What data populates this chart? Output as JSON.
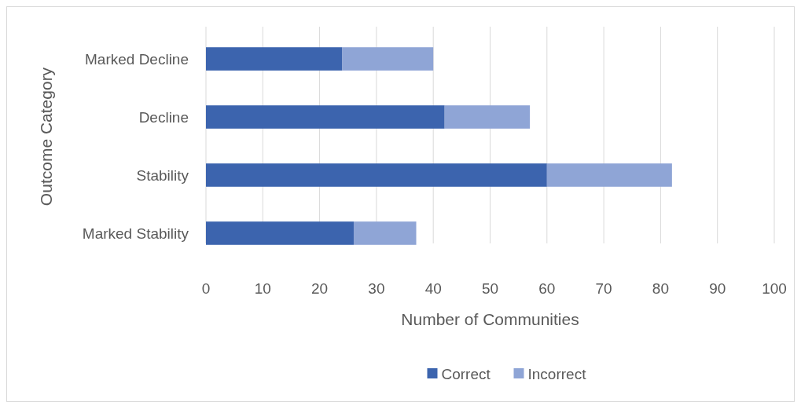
{
  "chart_data": {
    "type": "bar",
    "orientation": "horizontal",
    "stacked": true,
    "xlabel": "Number of Communities",
    "ylabel": "Outcome Category",
    "categories": [
      "Marked Decline",
      "Decline",
      "Stability",
      "Marked Stability"
    ],
    "series": [
      {
        "name": "Correct",
        "color": "#3c64ae",
        "values": [
          24,
          42,
          60,
          26
        ]
      },
      {
        "name": "Incorrect",
        "color": "#8fa5d6",
        "values": [
          16,
          15,
          22,
          11
        ]
      }
    ],
    "xlim": [
      0,
      100
    ],
    "xticks": [
      0,
      10,
      20,
      30,
      40,
      50,
      60,
      70,
      80,
      90,
      100
    ],
    "grid": "x",
    "legend": "bottom"
  }
}
